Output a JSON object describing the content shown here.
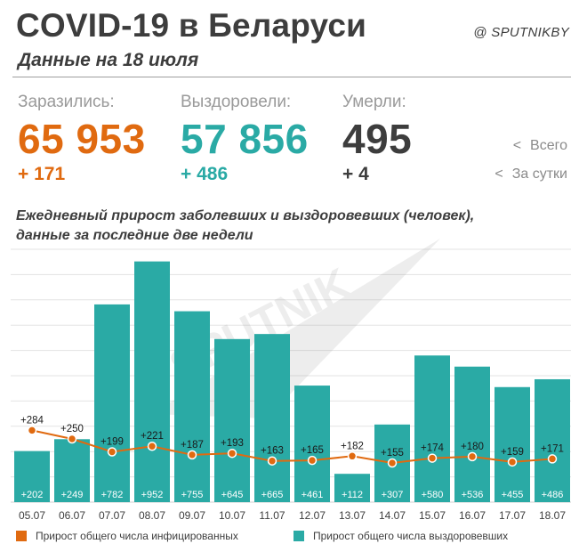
{
  "header": {
    "title": "COVID-19 в Беларуси",
    "subtitle": "Данные на 18 июля",
    "brand": "@ SPUTNIKBY"
  },
  "stats": {
    "infected": {
      "label": "Заразились:",
      "total": "65 953",
      "daily": "+ 171",
      "color": "#e06a10"
    },
    "recovered": {
      "label": "Выздоровели:",
      "total": "57 856",
      "daily": "+ 486",
      "color": "#2aaaa5"
    },
    "deaths": {
      "label": "Умерли:",
      "total": "495",
      "daily": "+ 4",
      "color": "#3d3d3d"
    }
  },
  "stat_legend": {
    "total": "Всего",
    "daily": "За сутки",
    "arrow": "<"
  },
  "chart_caption": {
    "line1": "Ежедневный прирост заболевших и выздоровевших (человек),",
    "line2": "данные за последние две недели"
  },
  "watermark": "SPUTNIK",
  "legend": {
    "infected": "Прирост общего числа инфицированных",
    "recovered": "Прирост общего числа выздоровевших"
  },
  "chart_data": {
    "type": "bar",
    "categories": [
      "05.07",
      "06.07",
      "07.07",
      "08.07",
      "09.07",
      "10.07",
      "11.07",
      "12.07",
      "13.07",
      "14.07",
      "15.07",
      "16.07",
      "17.07",
      "18.07"
    ],
    "series": [
      {
        "name": "Прирост общего числа выздоровевших",
        "type": "bar",
        "color": "#2aaaa5",
        "values": [
          202,
          249,
          782,
          952,
          755,
          645,
          665,
          461,
          112,
          307,
          580,
          536,
          455,
          486
        ]
      },
      {
        "name": "Прирост общего числа инфицированных",
        "type": "line",
        "color": "#e06a10",
        "values": [
          284,
          250,
          199,
          221,
          187,
          193,
          163,
          165,
          182,
          155,
          174,
          180,
          159,
          171
        ]
      }
    ],
    "ylim": [
      0,
      1000
    ],
    "grid": true
  }
}
